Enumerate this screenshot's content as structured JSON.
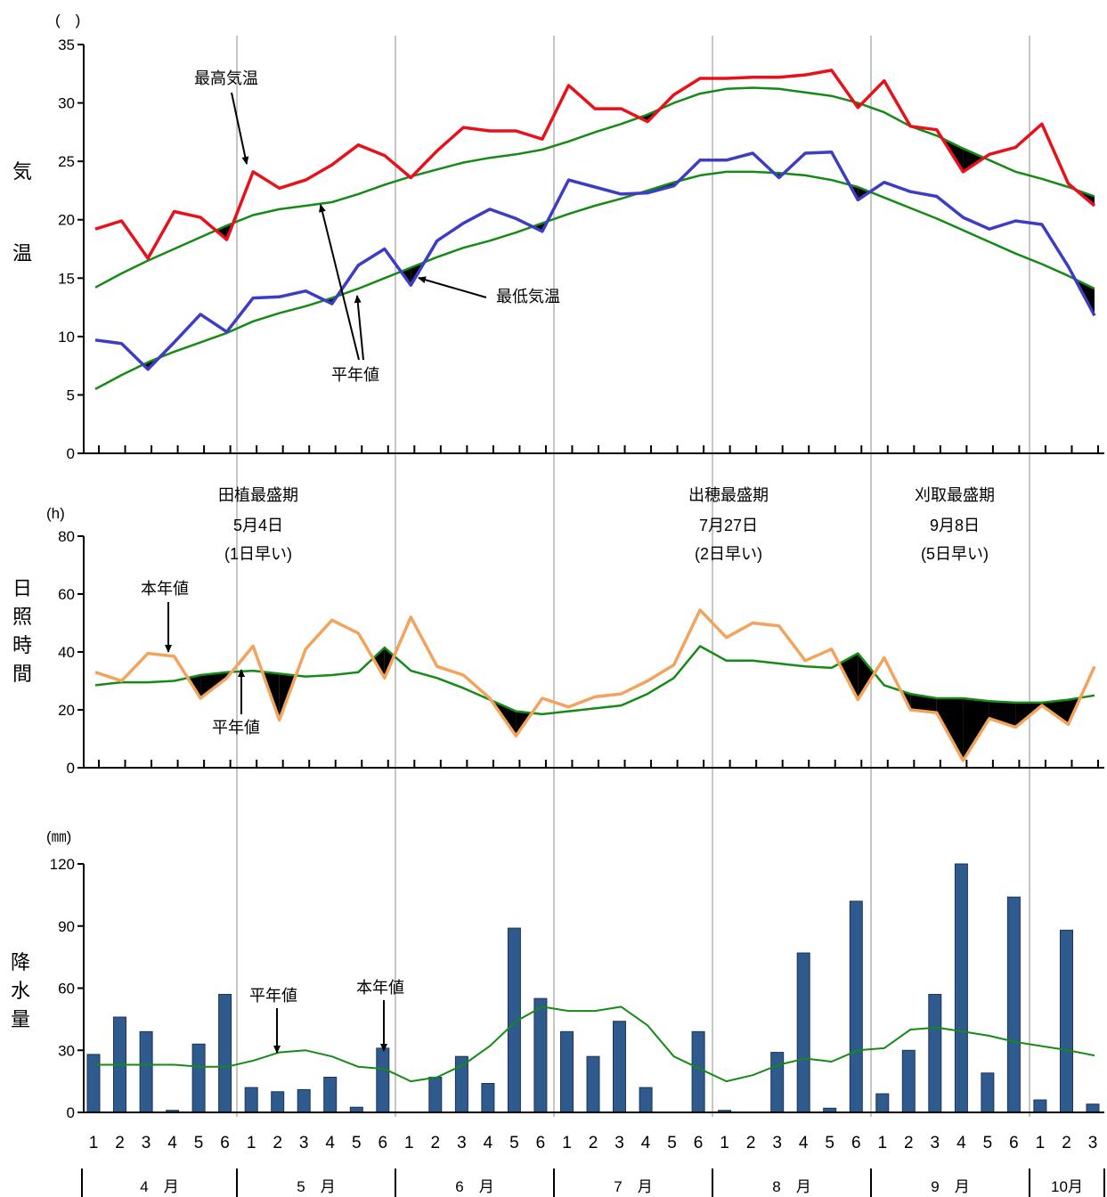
{
  "colors": {
    "max_temp": "#e8101a",
    "min_temp": "#3c3cc4",
    "normal": "#168a16",
    "sunshine": "#f2a35c",
    "rain_bar": "#2e5a8e",
    "rain_bar_edge": "#1a3558",
    "deficit_fill": "#000000",
    "separator": "#a0a0a0"
  },
  "x_axis": {
    "period_labels": [
      "1",
      "2",
      "3",
      "4",
      "5",
      "6",
      "1",
      "2",
      "3",
      "4",
      "5",
      "6",
      "1",
      "2",
      "3",
      "4",
      "5",
      "6",
      "1",
      "2",
      "3",
      "4",
      "5",
      "6",
      "1",
      "2",
      "3",
      "4",
      "5",
      "6",
      "1",
      "2",
      "3",
      "4",
      "5",
      "6",
      "1",
      "2",
      "3"
    ],
    "months": [
      "4　月",
      "5　月",
      "6　月",
      "7　月",
      "8　月",
      "9　月",
      "10月"
    ]
  },
  "events": [
    {
      "name": "田植最盛期",
      "date": "5月4日",
      "note": "(1日早い)"
    },
    {
      "name": "出穂最盛期",
      "date": "7月27日",
      "note": "(2日早い)"
    },
    {
      "name": "刈取最盛期",
      "date": "9月8日",
      "note": "(5日早い)"
    }
  ],
  "chart_data": [
    {
      "type": "line",
      "ylabel": "気温",
      "unit": "(　)",
      "ylim": [
        0,
        35
      ],
      "yticks": [
        "0",
        "5",
        "10",
        "15",
        "20",
        "25",
        "30",
        "35"
      ],
      "annotations": {
        "max": "最高気温",
        "min": "最低気温",
        "normal": "平年値"
      },
      "series": [
        {
          "name": "最高気温",
          "values": [
            19.2,
            19.9,
            16.7,
            20.7,
            20.2,
            18.3,
            24.1,
            22.7,
            23.4,
            24.7,
            26.4,
            25.5,
            23.6,
            25.9,
            27.9,
            27.6,
            27.6,
            26.9,
            31.5,
            29.5,
            29.5,
            28.4,
            30.7,
            32.1,
            32.1,
            32.2,
            32.2,
            32.4,
            32.8,
            29.6,
            31.9,
            28.0,
            27.7,
            24.1,
            25.6,
            26.2,
            28.2,
            23.1,
            21.2
          ]
        },
        {
          "name": "最低気温",
          "values": [
            9.7,
            9.4,
            7.2,
            9.5,
            11.9,
            10.4,
            13.3,
            13.4,
            13.9,
            12.8,
            16.1,
            17.5,
            14.4,
            18.2,
            19.7,
            20.9,
            20.1,
            19.0,
            23.4,
            22.8,
            22.2,
            22.3,
            22.9,
            25.1,
            25.1,
            25.7,
            23.6,
            25.7,
            25.8,
            21.7,
            23.2,
            22.4,
            22.0,
            20.2,
            19.2,
            19.9,
            19.6,
            16.0,
            11.8
          ]
        },
        {
          "name": "最高気温平年値",
          "values": [
            14.2,
            15.4,
            16.5,
            17.5,
            18.5,
            19.5,
            20.4,
            20.9,
            21.2,
            21.5,
            22.2,
            23.0,
            23.7,
            24.3,
            24.9,
            25.3,
            25.6,
            26.0,
            26.7,
            27.5,
            28.2,
            29.0,
            30.0,
            30.8,
            31.2,
            31.3,
            31.2,
            30.9,
            30.6,
            30.0,
            29.2,
            28.0,
            27.2,
            26.1,
            25.1,
            24.1,
            23.5,
            22.8,
            22.0
          ]
        },
        {
          "name": "最低気温平年値",
          "values": [
            5.5,
            6.7,
            7.8,
            8.7,
            9.5,
            10.3,
            11.3,
            12.0,
            12.6,
            13.3,
            14.1,
            15.0,
            15.9,
            16.8,
            17.6,
            18.2,
            18.9,
            19.7,
            20.5,
            21.2,
            21.8,
            22.5,
            23.2,
            23.8,
            24.1,
            24.1,
            24.0,
            23.8,
            23.4,
            22.8,
            21.9,
            21.0,
            20.1,
            19.1,
            18.1,
            17.1,
            16.2,
            15.2,
            14.1
          ]
        }
      ]
    },
    {
      "type": "line",
      "ylabel": "日照時間",
      "unit": "(h)",
      "ylim": [
        0,
        80
      ],
      "yticks": [
        "0",
        "20",
        "40",
        "60",
        "80"
      ],
      "annotations": {
        "actual": "本年値",
        "normal": "平年値"
      },
      "series": [
        {
          "name": "本年値",
          "values": [
            33,
            30,
            39.5,
            38.5,
            24,
            31,
            42,
            16.5,
            41,
            51,
            46.5,
            31,
            52,
            35,
            32,
            24,
            11,
            24,
            21,
            24.5,
            25.5,
            30,
            35.5,
            54.5,
            45,
            50,
            49,
            37,
            41,
            23.5,
            38,
            20,
            19,
            2.5,
            17,
            14,
            21.5,
            15,
            35
          ]
        },
        {
          "name": "平年値",
          "values": [
            28.5,
            29.5,
            29.5,
            30,
            32,
            33,
            33.5,
            32.5,
            31.5,
            32,
            33,
            41.5,
            33.5,
            31,
            27.5,
            23.5,
            19.5,
            18.5,
            19.5,
            20.5,
            21.5,
            25.5,
            31,
            42,
            37,
            37,
            36,
            35,
            34.5,
            39.5,
            28.5,
            25.5,
            24,
            24,
            23,
            22.5,
            22.5,
            23.5,
            25
          ]
        }
      ]
    },
    {
      "type": "bar",
      "ylabel": "降水量",
      "unit": "(㎜)",
      "ylim": [
        0,
        120
      ],
      "yticks": [
        "0",
        "30",
        "60",
        "90",
        "120"
      ],
      "annotations": {
        "normal": "平年値",
        "actual": "本年値"
      },
      "series": [
        {
          "name": "本年値",
          "values": [
            28,
            46,
            39,
            1,
            33,
            57,
            12,
            10,
            11,
            17,
            2.5,
            31,
            0,
            17,
            27,
            14,
            89,
            55,
            39,
            27,
            44,
            12,
            0,
            39,
            1,
            0,
            29,
            77,
            2,
            102,
            9,
            30,
            57,
            120,
            19,
            104,
            6,
            88,
            4
          ]
        },
        {
          "name": "平年値",
          "values": [
            23,
            23,
            23,
            23,
            22,
            22,
            25,
            29,
            30,
            27,
            22,
            21,
            15,
            17,
            23,
            32,
            44,
            51,
            49,
            49,
            51,
            42,
            27,
            21,
            15,
            18,
            23,
            26,
            24.5,
            30,
            31,
            40,
            41,
            39,
            37,
            34,
            32,
            30,
            27.5
          ]
        }
      ]
    }
  ]
}
